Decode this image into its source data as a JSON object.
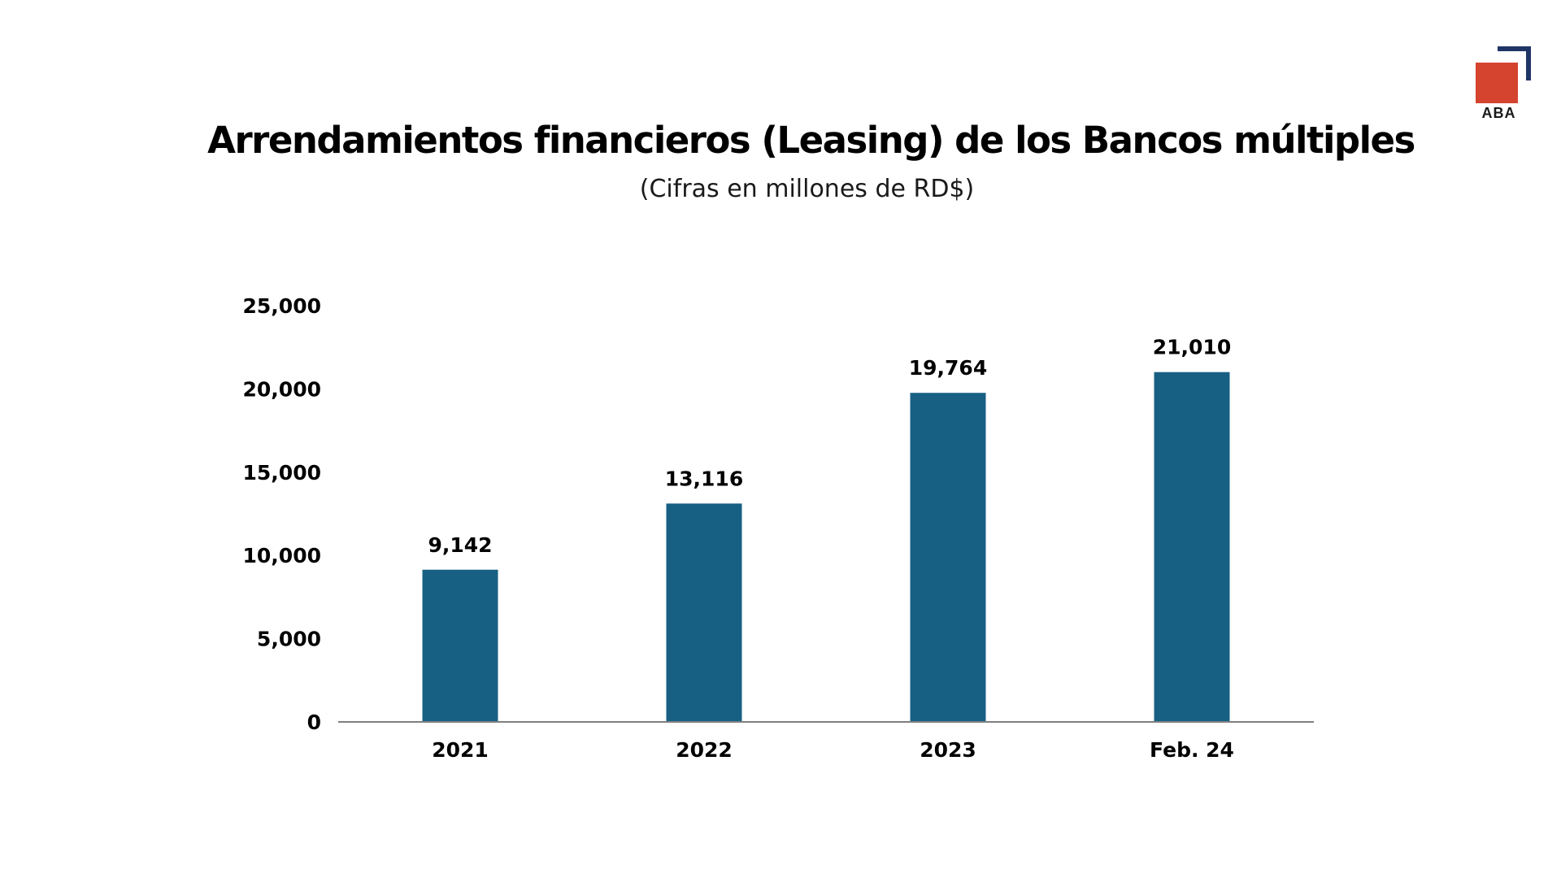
{
  "logo": {
    "text": "ABA",
    "colors": {
      "frame": "#1f3566",
      "square": "#d4442f"
    }
  },
  "chart_data": {
    "type": "bar",
    "title": "Arrendamientos financieros (Leasing) de los Bancos múltiples",
    "subtitle": "(Cifras en millones de RD$)",
    "categories": [
      "2021",
      "2022",
      "2023",
      "Feb. 24"
    ],
    "values": [
      9142,
      13116,
      19764,
      21010
    ],
    "data_labels": [
      "9,142",
      "13,116",
      "19,764",
      "21,010"
    ],
    "ylim": [
      0,
      25000
    ],
    "yticks": [
      0,
      5000,
      10000,
      15000,
      20000,
      25000
    ],
    "ytick_labels": [
      "0",
      "5,000",
      "10,000",
      "15,000",
      "20,000",
      "25,000"
    ],
    "xlabel": "",
    "ylabel": "",
    "grid": false,
    "legend": "none",
    "bar_color": "#176083"
  }
}
